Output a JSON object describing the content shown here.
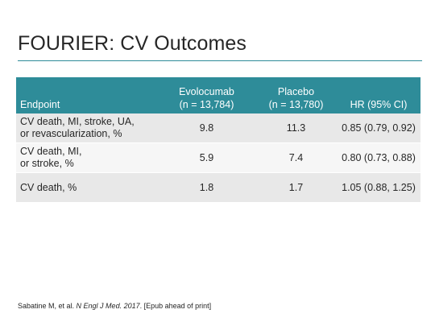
{
  "slide": {
    "title": "FOURIER: CV Outcomes"
  },
  "table": {
    "headers": {
      "endpoint": "Endpoint",
      "evolocumab_line1": "Evolocumab",
      "evolocumab_line2": "(n = 13,784)",
      "placebo_line1": "Placebo",
      "placebo_line2": "(n = 13,780)",
      "hr": "HR (95% CI)"
    },
    "rows": [
      {
        "endpoint_line1": "CV death, MI, stroke, UA,",
        "endpoint_line2": "or revascularization, %",
        "evolocumab": "9.8",
        "placebo": "11.3",
        "hr": "0.85 (0.79, 0.92)"
      },
      {
        "endpoint_line1": "CV death, MI,",
        "endpoint_line2": "or stroke, %",
        "evolocumab": "5.9",
        "placebo": "7.4",
        "hr": "0.80 (0.73, 0.88)"
      },
      {
        "endpoint_line1": "CV death, %",
        "endpoint_line2": "",
        "evolocumab": "1.8",
        "placebo": "1.7",
        "hr": "1.05 (0.88, 1.25)"
      }
    ]
  },
  "footnote": {
    "authors": "Sabatine M, et al. ",
    "journal": "N Engl J Med. 2017",
    "rest": ". [Epub ahead of print]"
  },
  "colors": {
    "header_bg": "#2e8c99",
    "row_odd": "#e8e8e8",
    "row_even": "#f6f6f6"
  }
}
